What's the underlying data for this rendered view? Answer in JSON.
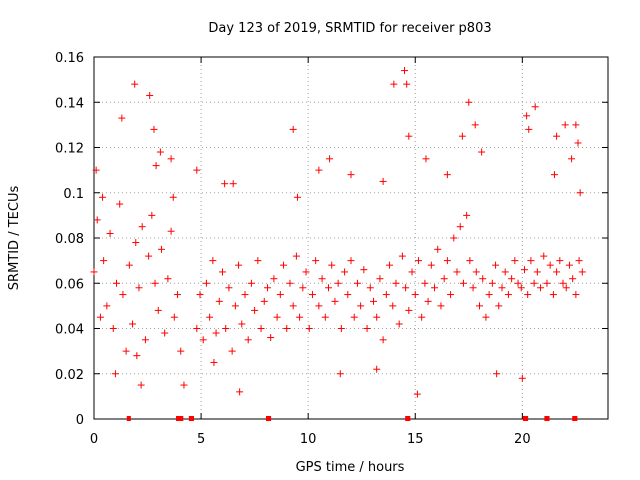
{
  "chart_data": {
    "type": "scatter",
    "title": "Day 123 of 2019, SRMTID for receiver p803",
    "xlabel": "GPS time / hours",
    "ylabel": "SRMTID / TECUs",
    "xlim": [
      0,
      24
    ],
    "ylim": [
      0,
      0.16
    ],
    "x_ticks": [
      0,
      5,
      10,
      15,
      20
    ],
    "x_tick_labels": [
      "0",
      "5",
      "10",
      "15",
      "20"
    ],
    "y_ticks": [
      0,
      0.02,
      0.04,
      0.06,
      0.08,
      0.1,
      0.12,
      0.14,
      0.16
    ],
    "y_tick_labels": [
      "0",
      "0.02",
      "0.04",
      "0.06",
      "0.08",
      "0.1",
      "0.12",
      "0.14",
      "0.16"
    ],
    "grid": true,
    "marker": "+",
    "series": [
      {
        "name": "SRMTID",
        "color": "#ff0000",
        "x": [
          0.0,
          0.15,
          0.3,
          0.45,
          0.6,
          0.75,
          0.9,
          1.05,
          1.2,
          1.35,
          1.5,
          1.65,
          1.8,
          1.95,
          2.1,
          2.25,
          2.4,
          2.55,
          2.7,
          2.85,
          3.0,
          3.15,
          3.3,
          3.45,
          3.6,
          3.75,
          3.9,
          4.05,
          4.8,
          4.95,
          5.1,
          5.25,
          5.4,
          5.55,
          5.7,
          5.85,
          6.0,
          6.15,
          6.3,
          6.45,
          6.6,
          6.75,
          6.9,
          7.05,
          7.2,
          7.35,
          7.5,
          7.65,
          7.8,
          7.95,
          8.1,
          8.25,
          8.4,
          8.55,
          8.7,
          8.85,
          9.0,
          9.15,
          9.3,
          9.45,
          9.6,
          9.75,
          9.9,
          10.05,
          10.2,
          10.35,
          10.5,
          10.65,
          10.8,
          10.95,
          11.1,
          11.25,
          11.4,
          11.55,
          11.7,
          11.85,
          12.0,
          12.15,
          12.3,
          12.45,
          12.6,
          12.75,
          12.9,
          13.05,
          13.2,
          13.35,
          13.5,
          13.65,
          13.8,
          13.95,
          14.1,
          14.25,
          14.4,
          14.55,
          14.7,
          14.85,
          15.0,
          15.15,
          15.3,
          15.45,
          15.6,
          15.75,
          15.9,
          16.05,
          16.2,
          16.35,
          16.5,
          16.65,
          16.8,
          16.95,
          17.1,
          17.25,
          17.4,
          17.55,
          17.7,
          17.85,
          18.0,
          18.15,
          18.3,
          18.45,
          18.6,
          18.75,
          18.9,
          19.05,
          19.2,
          19.35,
          19.5,
          19.65,
          19.8,
          19.95,
          20.1,
          20.25,
          20.4,
          20.55,
          20.7,
          20.85,
          21.0,
          21.15,
          21.3,
          21.45,
          21.6,
          21.75,
          21.9,
          22.05,
          22.2,
          22.35,
          22.5,
          22.65,
          22.8,
          0.1,
          0.4,
          1.0,
          1.3,
          1.9,
          2.0,
          2.6,
          2.8,
          2.9,
          3.1,
          3.6,
          3.7,
          4.8,
          5.6,
          6.1,
          6.5,
          9.3,
          9.5,
          10.5,
          11.0,
          12.0,
          13.5,
          14.0,
          14.5,
          14.6,
          14.7,
          15.5,
          16.5,
          17.2,
          17.5,
          17.8,
          18.1,
          20.2,
          20.3,
          20.6,
          21.5,
          21.6,
          22.0,
          22.3,
          22.5,
          22.6,
          22.7,
          2.2,
          6.8,
          13.2,
          15.1,
          20.0,
          4.2,
          11.5,
          18.8
        ],
        "y": [
          0.065,
          0.088,
          0.045,
          0.07,
          0.05,
          0.082,
          0.04,
          0.06,
          0.095,
          0.055,
          0.03,
          0.068,
          0.042,
          0.078,
          0.058,
          0.085,
          0.035,
          0.072,
          0.09,
          0.06,
          0.048,
          0.075,
          0.038,
          0.062,
          0.083,
          0.045,
          0.055,
          0.03,
          0.04,
          0.055,
          0.035,
          0.06,
          0.045,
          0.07,
          0.038,
          0.052,
          0.065,
          0.04,
          0.058,
          0.03,
          0.05,
          0.068,
          0.042,
          0.055,
          0.035,
          0.06,
          0.048,
          0.07,
          0.04,
          0.052,
          0.058,
          0.036,
          0.062,
          0.045,
          0.055,
          0.068,
          0.04,
          0.06,
          0.05,
          0.072,
          0.045,
          0.058,
          0.065,
          0.04,
          0.055,
          0.07,
          0.05,
          0.062,
          0.045,
          0.058,
          0.068,
          0.052,
          0.06,
          0.04,
          0.065,
          0.055,
          0.07,
          0.045,
          0.06,
          0.05,
          0.066,
          0.04,
          0.058,
          0.052,
          0.045,
          0.062,
          0.035,
          0.055,
          0.068,
          0.05,
          0.06,
          0.042,
          0.072,
          0.058,
          0.048,
          0.065,
          0.055,
          0.07,
          0.045,
          0.06,
          0.052,
          0.068,
          0.058,
          0.075,
          0.05,
          0.062,
          0.07,
          0.055,
          0.08,
          0.065,
          0.085,
          0.06,
          0.09,
          0.07,
          0.058,
          0.065,
          0.05,
          0.062,
          0.045,
          0.055,
          0.06,
          0.068,
          0.05,
          0.058,
          0.065,
          0.055,
          0.062,
          0.07,
          0.06,
          0.058,
          0.066,
          0.055,
          0.07,
          0.06,
          0.065,
          0.058,
          0.072,
          0.06,
          0.068,
          0.055,
          0.065,
          0.07,
          0.06,
          0.058,
          0.068,
          0.062,
          0.055,
          0.07,
          0.065,
          0.11,
          0.098,
          0.02,
          0.133,
          0.148,
          0.028,
          0.143,
          0.128,
          0.112,
          0.118,
          0.115,
          0.098,
          0.11,
          0.025,
          0.104,
          0.104,
          0.128,
          0.098,
          0.11,
          0.115,
          0.108,
          0.105,
          0.148,
          0.154,
          0.148,
          0.125,
          0.115,
          0.108,
          0.125,
          0.14,
          0.13,
          0.118,
          0.134,
          0.128,
          0.138,
          0.108,
          0.125,
          0.13,
          0.115,
          0.13,
          0.122,
          0.1,
          0.015,
          0.012,
          0.022,
          0.011,
          0.018,
          0.015,
          0.02,
          0.02
        ]
      }
    ],
    "zero_markers_x": [
      1.6,
      1.65,
      3.9,
      4.0,
      4.1,
      4.5,
      4.6,
      8.1,
      8.2,
      14.6,
      14.7,
      20.1,
      20.2,
      21.1,
      21.2,
      22.4,
      22.5
    ]
  }
}
